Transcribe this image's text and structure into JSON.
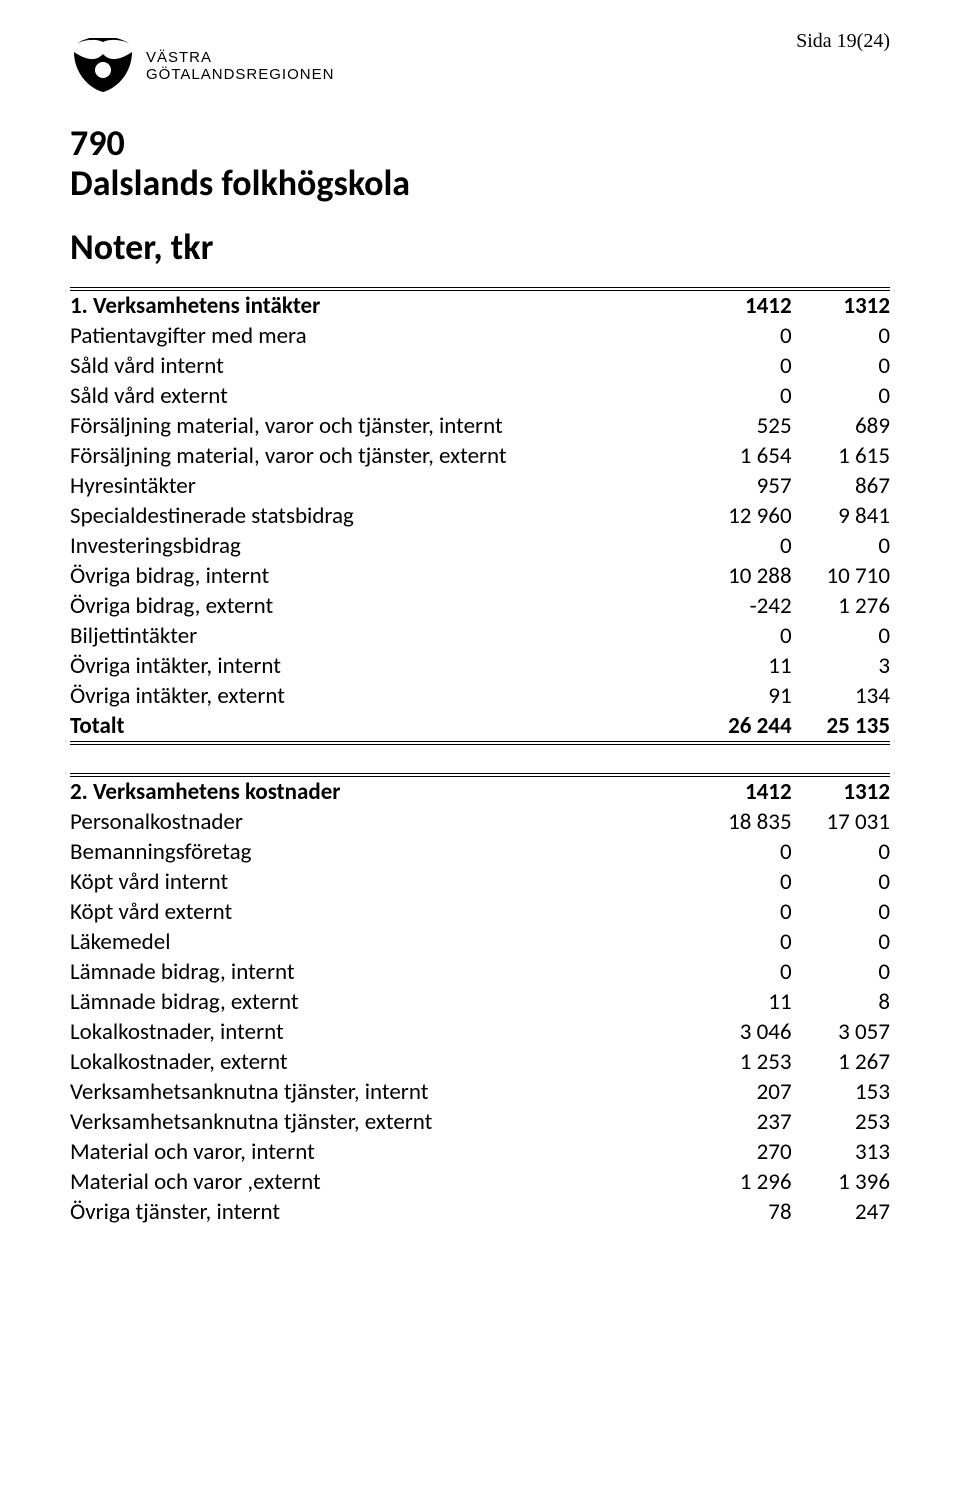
{
  "page_number": "Sida 19(24)",
  "logo": {
    "line1": "VÄSTRA",
    "line2": "GÖTALANDSREGIONEN"
  },
  "doc": {
    "code": "790",
    "title": "Dalslands folkhögskola",
    "subtitle": "Noter, tkr"
  },
  "table1": {
    "header": {
      "label": "1. Verksamhetens intäkter",
      "c1": "1412",
      "c2": "1312"
    },
    "rows": [
      {
        "label": "Patientavgifter med mera",
        "c1": "0",
        "c2": "0"
      },
      {
        "label": "Såld vård internt",
        "c1": "0",
        "c2": "0"
      },
      {
        "label": "Såld vård externt",
        "c1": "0",
        "c2": "0"
      },
      {
        "label": "Försäljning material, varor och tjänster, internt",
        "c1": "525",
        "c2": "689"
      },
      {
        "label": "Försäljning material, varor och tjänster, externt",
        "c1": "1 654",
        "c2": "1 615"
      },
      {
        "label": "Hyresintäkter",
        "c1": "957",
        "c2": "867"
      },
      {
        "label": "Specialdestinerade statsbidrag",
        "c1": "12 960",
        "c2": "9 841"
      },
      {
        "label": "Investeringsbidrag",
        "c1": "0",
        "c2": "0"
      },
      {
        "label": "Övriga bidrag, internt",
        "c1": "10 288",
        "c2": "10 710"
      },
      {
        "label": "Övriga bidrag, externt",
        "c1": "-242",
        "c2": "1 276"
      },
      {
        "label": "Biljettintäkter",
        "c1": "0",
        "c2": "0"
      },
      {
        "label": "Övriga intäkter, internt",
        "c1": "11",
        "c2": "3"
      },
      {
        "label": "Övriga intäkter, externt",
        "c1": "91",
        "c2": "134"
      }
    ],
    "total": {
      "label": "Totalt",
      "c1": "26 244",
      "c2": "25 135"
    }
  },
  "table2": {
    "header": {
      "label": "2. Verksamhetens kostnader",
      "c1": "1412",
      "c2": "1312"
    },
    "rows": [
      {
        "label": "Personalkostnader",
        "c1": "18 835",
        "c2": "17 031"
      },
      {
        "label": "Bemanningsföretag",
        "c1": "0",
        "c2": "0"
      },
      {
        "label": "Köpt vård internt",
        "c1": "0",
        "c2": "0"
      },
      {
        "label": "Köpt vård externt",
        "c1": "0",
        "c2": "0"
      },
      {
        "label": "Läkemedel",
        "c1": "0",
        "c2": "0"
      },
      {
        "label": "Lämnade bidrag, internt",
        "c1": "0",
        "c2": "0"
      },
      {
        "label": "Lämnade bidrag, externt",
        "c1": "11",
        "c2": "8"
      },
      {
        "label": "Lokalkostnader, internt",
        "c1": "3 046",
        "c2": "3 057"
      },
      {
        "label": "Lokalkostnader, externt",
        "c1": "1 253",
        "c2": "1 267"
      },
      {
        "label": "Verksamhetsanknutna tjänster, internt",
        "c1": "207",
        "c2": "153"
      },
      {
        "label": "Verksamhetsanknutna tjänster, externt",
        "c1": "237",
        "c2": "253"
      },
      {
        "label": "Material och varor, internt",
        "c1": "270",
        "c2": "313"
      },
      {
        "label": "Material och varor ,externt",
        "c1": "1 296",
        "c2": "1 396"
      },
      {
        "label": "Övriga tjänster, internt",
        "c1": "78",
        "c2": "247"
      }
    ]
  }
}
